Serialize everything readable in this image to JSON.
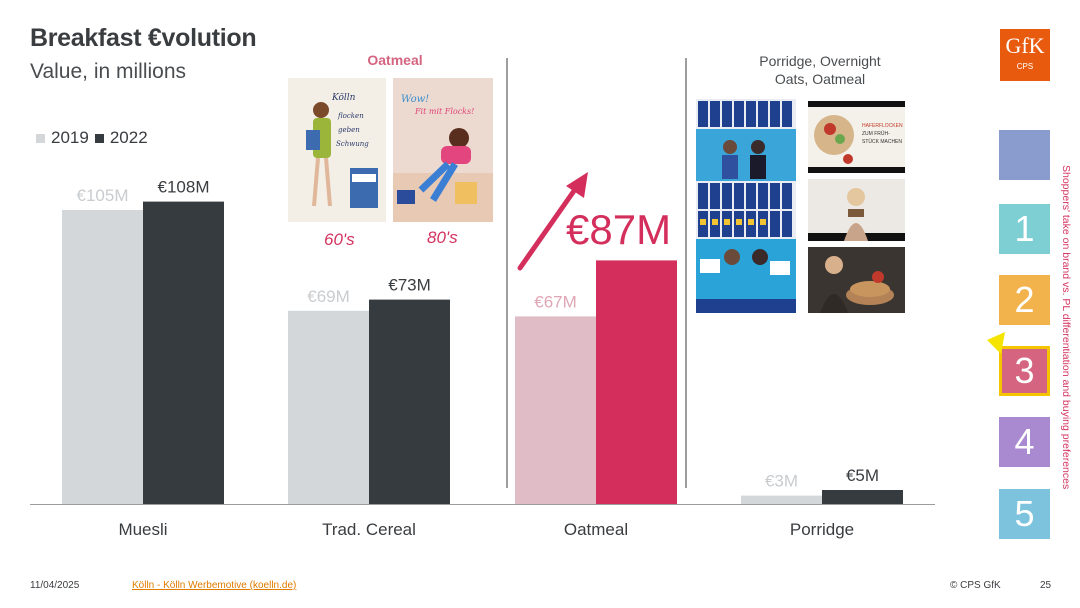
{
  "header": {
    "title": "Breakfast €volution",
    "subtitle": "Value, in millions"
  },
  "legend": [
    {
      "label": "2019",
      "color": "#d4d7d9"
    },
    {
      "label": "2022",
      "color": "#363b3f"
    }
  ],
  "chart_data": {
    "type": "bar",
    "categories": [
      "Muesli",
      "Trad. Cereal",
      "Oatmeal",
      "Porridge"
    ],
    "series": [
      {
        "name": "2019",
        "values": [
          105,
          69,
          67,
          3
        ],
        "labels": [
          "€105M",
          "€69M",
          "€67M",
          "€3M"
        ]
      },
      {
        "name": "2022",
        "values": [
          108,
          73,
          87,
          5
        ],
        "labels": [
          "€108M",
          "€73M",
          "€87M",
          "€5M"
        ]
      }
    ],
    "ylabel": "Value, in millions",
    "highlight_category": "Oatmeal",
    "colors": {
      "default_2019": "#d4d7d9",
      "default_2022": "#363b3f",
      "highlight_2019": "#dfbcc6",
      "highlight_2022": "#d42f5c"
    },
    "grid": false,
    "legend_position": "top-left"
  },
  "annotations": {
    "oatmeal_heading": "Oatmeal",
    "porridge_heading_line1": "Porridge, Overnight",
    "porridge_heading_line2": "Oats, Oatmeal",
    "decade_60": "60's",
    "decade_80": "80's",
    "oatmeal_big_value": "€87M"
  },
  "logo": {
    "brand": "GfK",
    "sub": "CPS"
  },
  "sidebar": {
    "items": [
      {
        "label": "",
        "color": "#8a9bce"
      },
      {
        "label": "1",
        "color": "#7ecfd4"
      },
      {
        "label": "2",
        "color": "#f2b34c"
      },
      {
        "label": "3",
        "color": "#d4647f",
        "selected": true
      },
      {
        "label": "4",
        "color": "#a98ad0"
      },
      {
        "label": "5",
        "color": "#7ec3dd"
      }
    ],
    "vertical_text": "Shoppers' take on brand vs. PL differentiation and buying preferences"
  },
  "footer": {
    "date": "11/04/2025",
    "link": "Kölln - Kölln Werbemotive (koelln.de)",
    "copyright": "© CPS GfK",
    "page": "25"
  }
}
